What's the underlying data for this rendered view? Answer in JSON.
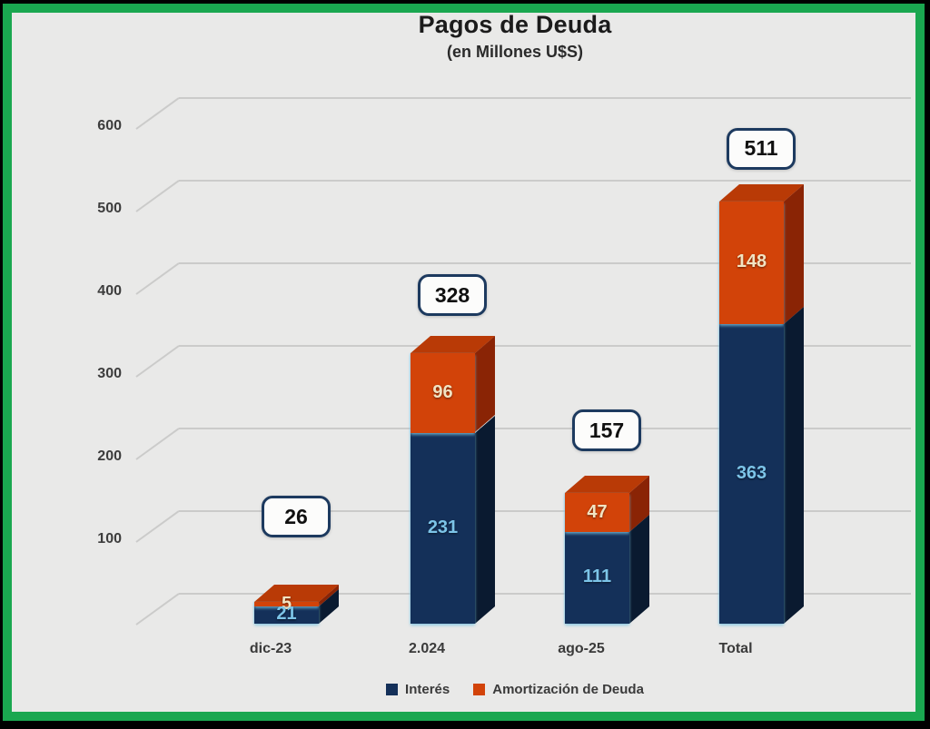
{
  "title": "Pagos de Deuda",
  "subtitle": "(en Millones U$S)",
  "chart_data": {
    "type": "bar",
    "stacked": true,
    "style": "3d",
    "title": "Pagos de Deuda",
    "subtitle": "(en Millones U$S)",
    "categories": [
      "dic-23",
      "2.024",
      "ago-25",
      "Total"
    ],
    "series": [
      {
        "name": "Interés",
        "values": [
          21,
          231,
          111,
          363
        ],
        "color": "#143059",
        "side_color": "#0a1a30",
        "label_color": "#7cc4e8"
      },
      {
        "name": "Amortización de Deuda",
        "values": [
          5,
          96,
          47,
          148
        ],
        "color": "#d24309",
        "side_color": "#8a2405",
        "top_color": "#b93a06",
        "label_color": "#f2e4c3"
      }
    ],
    "totals": [
      26,
      328,
      157,
      511
    ],
    "y_ticks": [
      100,
      200,
      300,
      400,
      500,
      600
    ],
    "ylim": [
      0,
      650
    ],
    "grid": true,
    "legend_position": "bottom"
  },
  "colors": {
    "background": "#e9e9e8",
    "frame_green": "#1aa750",
    "frame_black": "#000000",
    "gridline": "#c6c6c4",
    "tick_label": "#3d3d3d",
    "category_label": "#3a3a3a",
    "total_box_border": "#1d3a5f",
    "total_box_bg": "#fcfcfb",
    "title_color": "#1b1b1b"
  }
}
